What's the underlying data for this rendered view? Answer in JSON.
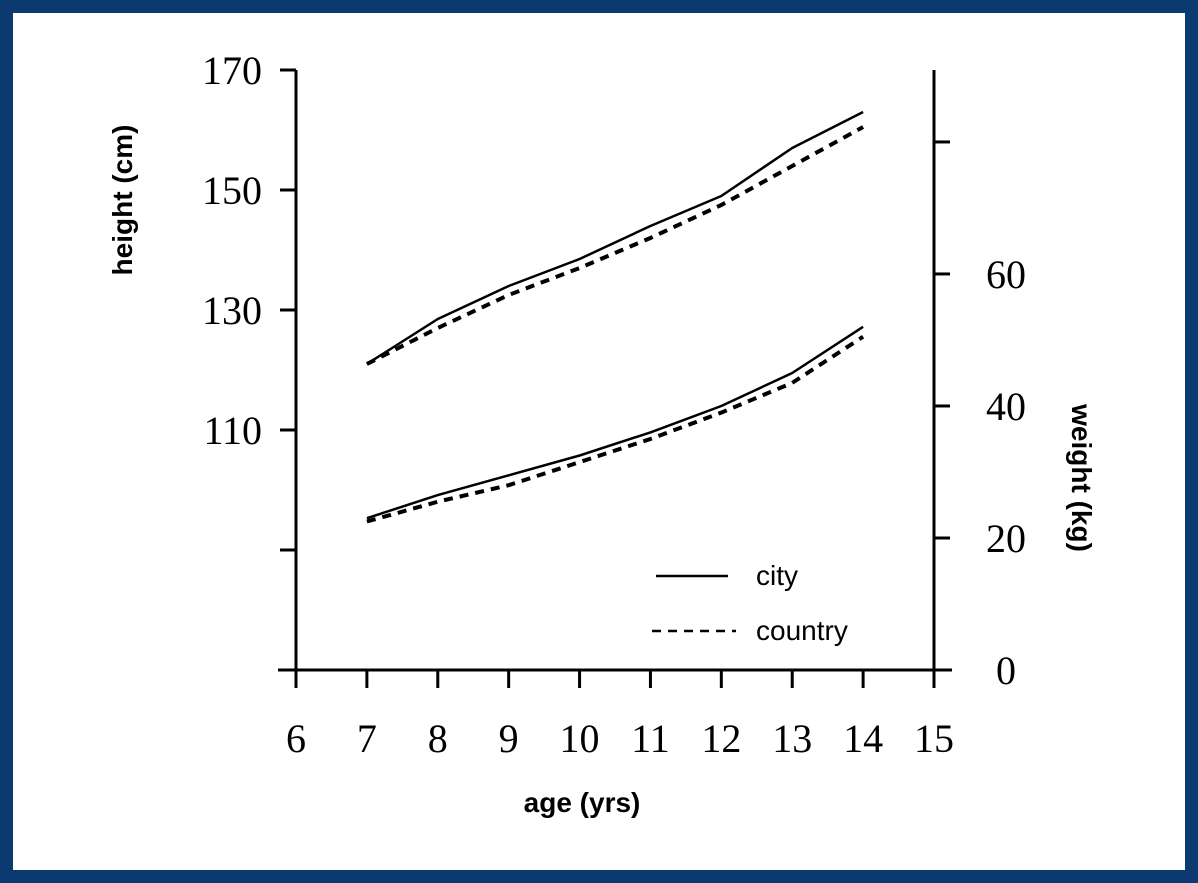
{
  "colors": {
    "frame": "#0b3a70",
    "ink": "#000000",
    "background": "#ffffff"
  },
  "chart_data": {
    "type": "line",
    "title": "",
    "xlabel": "age (yrs)",
    "ylabel_left": "height (cm)",
    "ylabel_right": "weight (kg)",
    "x_ticks": [
      6,
      7,
      8,
      9,
      10,
      11,
      12,
      13,
      14,
      15
    ],
    "xlim": [
      6,
      15
    ],
    "y_left_ticks": [
      170,
      150,
      130,
      110,
      90
    ],
    "y_left_tick_labels": [
      "170",
      "150",
      "130",
      "110",
      ""
    ],
    "y_left_lim": [
      70,
      170
    ],
    "y_right_ticks": [
      0,
      20,
      40,
      60,
      80
    ],
    "y_right_tick_labels": [
      "0",
      "20",
      "40",
      "60",
      ""
    ],
    "y_right_lim": [
      0,
      90.9
    ],
    "grid": false,
    "legend": {
      "placement": "bottom-right",
      "entries": [
        "city",
        "country"
      ]
    },
    "series": [
      {
        "name": "city",
        "group": "height",
        "axis": "left",
        "style": "solid",
        "x": [
          7,
          8,
          9,
          10,
          11,
          12,
          13,
          14
        ],
        "y": [
          121,
          128.5,
          134,
          138.5,
          144,
          149,
          157,
          163
        ]
      },
      {
        "name": "country",
        "group": "height",
        "axis": "left",
        "style": "dashed",
        "x": [
          7,
          8,
          9,
          10,
          11,
          12,
          13,
          14
        ],
        "y": [
          121,
          127,
          132.5,
          137,
          142,
          147.5,
          154,
          160.5
        ]
      },
      {
        "name": "city",
        "group": "weight",
        "axis": "right",
        "style": "solid",
        "x": [
          7,
          8,
          9,
          10,
          11,
          12,
          13,
          14
        ],
        "y": [
          23,
          26.5,
          29.5,
          32.5,
          36,
          40,
          45,
          52
        ]
      },
      {
        "name": "country",
        "group": "weight",
        "axis": "right",
        "style": "dashed",
        "x": [
          7,
          8,
          9,
          10,
          11,
          12,
          13,
          14
        ],
        "y": [
          22.5,
          25.5,
          28,
          31.5,
          35,
          39,
          43.5,
          50.5
        ]
      }
    ]
  }
}
